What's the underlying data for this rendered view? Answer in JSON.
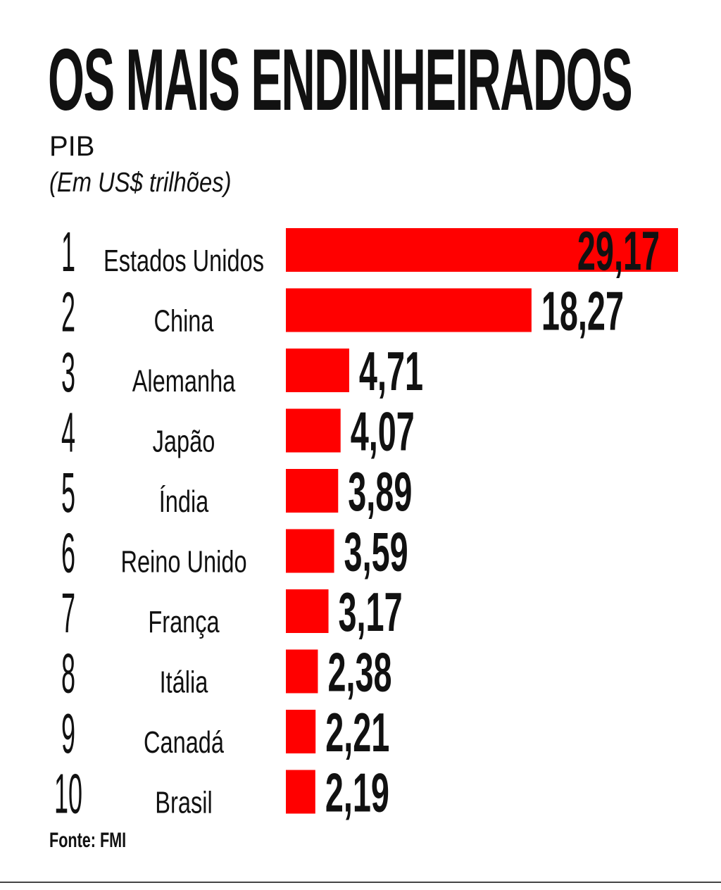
{
  "chart_data": {
    "type": "bar",
    "orientation": "horizontal",
    "title": "OS MAIS ENDINHEIRADOS",
    "subtitle": "PIB",
    "unit": "(Em US$ trilhões)",
    "ranks": [
      "1",
      "2",
      "3",
      "4",
      "5",
      "6",
      "7",
      "8",
      "9",
      "10"
    ],
    "categories": [
      "Estados Unidos",
      "China",
      "Alemanha",
      "Japão",
      "Índia",
      "Reino Unido",
      "França",
      "Itália",
      "Canadá",
      "Brasil"
    ],
    "values": [
      29.17,
      18.27,
      4.71,
      4.07,
      3.89,
      3.59,
      3.17,
      2.38,
      2.21,
      2.19
    ],
    "value_labels": [
      "29,17",
      "18,27",
      "4,71",
      "4,07",
      "3,89",
      "3,59",
      "3,17",
      "2,38",
      "2,21",
      "2,19"
    ],
    "xlim": [
      0,
      29.17
    ],
    "grid": false,
    "legend": "none",
    "bar_color": "#ff0000",
    "source": "Fonte: FMI"
  }
}
